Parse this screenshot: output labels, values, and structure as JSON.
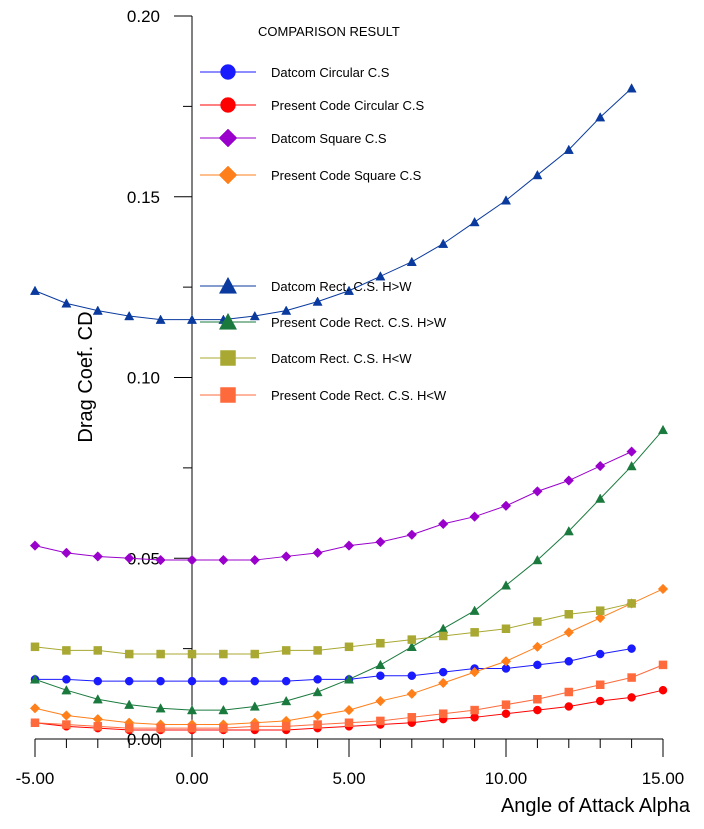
{
  "chart_data": {
    "type": "line",
    "title": "",
    "legend_title": "COMPARISON RESULT",
    "xlabel": "Angle of Attack Alpha",
    "ylabel": "Drag Coef. CD",
    "xlim": [
      -5,
      15
    ],
    "ylim": [
      0,
      0.2
    ],
    "x_ticks": [
      -5,
      0,
      5,
      10,
      15
    ],
    "x_tick_labels": [
      "-5.00",
      "0.00",
      "5.00",
      "10.00",
      "15.00"
    ],
    "y_ticks": [
      0,
      0.05,
      0.1,
      0.15,
      0.2
    ],
    "y_tick_labels": [
      "0.00",
      "0.05",
      "0.10",
      "0.15",
      "0.20"
    ],
    "grid": false,
    "legend_placement": "top-center",
    "series": [
      {
        "name": "Datcom Circular C.S",
        "marker": "circle",
        "color": "#1a1aff",
        "x": [
          -5,
          -4,
          -3,
          -2,
          -1,
          0,
          1,
          2,
          3,
          4,
          5,
          6,
          7,
          8,
          9,
          10,
          11,
          12,
          13,
          14
        ],
        "values": [
          0.0165,
          0.0165,
          0.016,
          0.016,
          0.016,
          0.016,
          0.016,
          0.016,
          0.016,
          0.0165,
          0.0165,
          0.0175,
          0.0175,
          0.0185,
          0.0195,
          0.0195,
          0.0205,
          0.0215,
          0.0235,
          0.025
        ]
      },
      {
        "name": "Present Code Circular C.S",
        "marker": "circle",
        "color": "#ff0000",
        "x": [
          -5,
          -4,
          -3,
          -2,
          -1,
          0,
          1,
          2,
          3,
          4,
          5,
          6,
          7,
          8,
          9,
          10,
          11,
          12,
          13,
          14,
          15
        ],
        "values": [
          0.0045,
          0.0035,
          0.003,
          0.0025,
          0.0025,
          0.0025,
          0.0025,
          0.0025,
          0.0025,
          0.003,
          0.0035,
          0.004,
          0.0045,
          0.0055,
          0.006,
          0.007,
          0.008,
          0.009,
          0.0105,
          0.0115,
          0.0135
        ]
      },
      {
        "name": "Datcom Square C.S",
        "marker": "diamond",
        "color": "#9900cc",
        "x": [
          -5,
          -4,
          -3,
          -2,
          -1,
          0,
          1,
          2,
          3,
          4,
          5,
          6,
          7,
          8,
          9,
          10,
          11,
          12,
          13,
          14
        ],
        "values": [
          0.0535,
          0.0515,
          0.0505,
          0.05,
          0.0495,
          0.0495,
          0.0495,
          0.0495,
          0.0505,
          0.0515,
          0.0535,
          0.0545,
          0.0565,
          0.0595,
          0.0615,
          0.0645,
          0.0685,
          0.0715,
          0.0755,
          0.0795
        ]
      },
      {
        "name": "Present Code Square C.S",
        "marker": "diamond",
        "color": "#ff7f1a",
        "x": [
          -5,
          -4,
          -3,
          -2,
          -1,
          0,
          1,
          2,
          3,
          4,
          5,
          6,
          7,
          8,
          9,
          10,
          11,
          12,
          13,
          14,
          15
        ],
        "values": [
          0.0085,
          0.0065,
          0.0055,
          0.0045,
          0.004,
          0.004,
          0.004,
          0.0045,
          0.005,
          0.0065,
          0.008,
          0.0105,
          0.0125,
          0.0155,
          0.0185,
          0.0215,
          0.0255,
          0.0295,
          0.0335,
          0.0375,
          0.0415
        ]
      },
      {
        "name": "Datcom Rect. C.S. H>W",
        "marker": "triangle",
        "color": "#0a3a9e",
        "x": [
          -5,
          -4,
          -3,
          -2,
          -1,
          0,
          1,
          2,
          3,
          4,
          5,
          6,
          7,
          8,
          9,
          10,
          11,
          12,
          13,
          14
        ],
        "values": [
          0.124,
          0.1205,
          0.1185,
          0.117,
          0.116,
          0.116,
          0.116,
          0.117,
          0.1185,
          0.121,
          0.124,
          0.128,
          0.132,
          0.137,
          0.143,
          0.149,
          0.156,
          0.163,
          0.172,
          0.18
        ]
      },
      {
        "name": "Present Code Rect. C.S. H>W",
        "marker": "triangle",
        "color": "#1a7a3e",
        "x": [
          -5,
          -4,
          -3,
          -2,
          -1,
          0,
          1,
          2,
          3,
          4,
          5,
          6,
          7,
          8,
          9,
          10,
          11,
          12,
          13,
          14,
          15
        ],
        "values": [
          0.0165,
          0.0135,
          0.011,
          0.0095,
          0.0085,
          0.008,
          0.008,
          0.009,
          0.0105,
          0.013,
          0.0165,
          0.0205,
          0.0255,
          0.0305,
          0.0355,
          0.0425,
          0.0495,
          0.0575,
          0.0665,
          0.0755,
          0.0855
        ]
      },
      {
        "name": "Datcom Rect. C.S. H<W",
        "marker": "square",
        "color": "#a8a832",
        "x": [
          -5,
          -4,
          -3,
          -2,
          -1,
          0,
          1,
          2,
          3,
          4,
          5,
          6,
          7,
          8,
          9,
          10,
          11,
          12,
          13,
          14
        ],
        "values": [
          0.0255,
          0.0245,
          0.0245,
          0.0235,
          0.0235,
          0.0235,
          0.0235,
          0.0235,
          0.0245,
          0.0245,
          0.0255,
          0.0265,
          0.0275,
          0.0285,
          0.0295,
          0.0305,
          0.0325,
          0.0345,
          0.0355,
          0.0375
        ]
      },
      {
        "name": "Present Code Rect. C.S. H<W",
        "marker": "square",
        "color": "#ff6a3d",
        "x": [
          -5,
          -4,
          -3,
          -2,
          -1,
          0,
          1,
          2,
          3,
          4,
          5,
          6,
          7,
          8,
          9,
          10,
          11,
          12,
          13,
          14,
          15
        ],
        "values": [
          0.0045,
          0.004,
          0.0035,
          0.003,
          0.003,
          0.003,
          0.003,
          0.0035,
          0.0035,
          0.004,
          0.0045,
          0.005,
          0.006,
          0.007,
          0.008,
          0.0095,
          0.011,
          0.013,
          0.015,
          0.017,
          0.0205
        ]
      }
    ]
  }
}
